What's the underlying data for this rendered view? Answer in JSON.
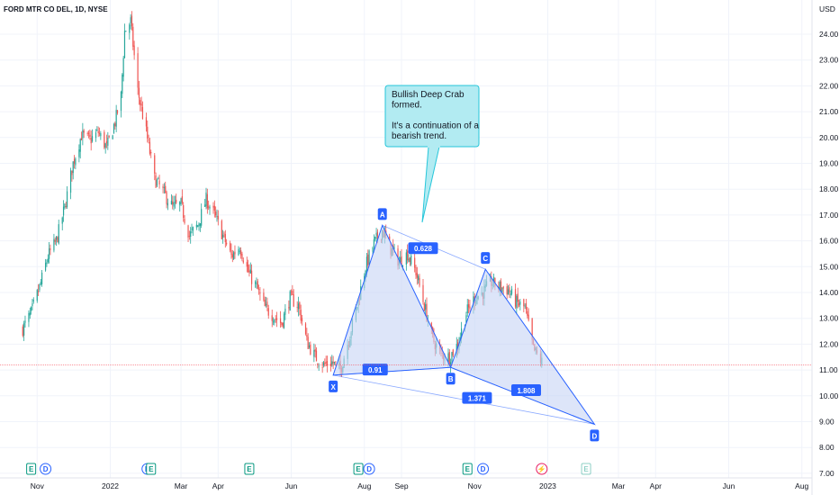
{
  "header": {
    "symbol": "FORD MTR CO DEL, 1D, NYSE"
  },
  "currency": "USD",
  "current_price": "11.20",
  "callout": {
    "lines": [
      "Bullish Deep Crab",
      "formed.",
      "",
      "It's a continuation of a",
      "bearish trend."
    ]
  },
  "chart_data": {
    "type": "candlestick",
    "x_labels": [
      "Nov",
      "2022",
      "Mar",
      "Apr",
      "Jun",
      "Aug",
      "Sep",
      "Nov",
      "2023",
      "Mar",
      "Apr",
      "Jun",
      "Aug"
    ],
    "y_ticks": [
      "24.00",
      "23.00",
      "22.00",
      "21.00",
      "20.00",
      "19.00",
      "18.00",
      "17.00",
      "16.00",
      "15.00",
      "14.00",
      "13.00",
      "12.00",
      "11.00",
      "10.00",
      "9.00",
      "8.00",
      "7.00"
    ],
    "ylim": [
      6.7,
      25.2
    ],
    "price_path": [
      [
        "2021-10-20",
        12.6
      ],
      [
        "2021-10-27",
        13.2
      ],
      [
        "2021-11-03",
        14.2
      ],
      [
        "2021-11-10",
        15.4
      ],
      [
        "2021-11-17",
        16.0
      ],
      [
        "2021-11-24",
        17.3
      ],
      [
        "2021-12-01",
        19.0
      ],
      [
        "2021-12-08",
        20.1
      ],
      [
        "2021-12-15",
        19.9
      ],
      [
        "2021-12-22",
        20.2
      ],
      [
        "2021-12-29",
        19.6
      ],
      [
        "2022-01-05",
        20.6
      ],
      [
        "2022-01-10",
        21.6
      ],
      [
        "2022-01-13",
        24.1
      ],
      [
        "2022-01-18",
        24.5
      ],
      [
        "2022-01-24",
        21.8
      ],
      [
        "2022-01-31",
        20.2
      ],
      [
        "2022-02-07",
        18.4
      ],
      [
        "2022-02-14",
        17.9
      ],
      [
        "2022-02-22",
        17.3
      ],
      [
        "2022-03-01",
        17.4
      ],
      [
        "2022-03-08",
        16.2
      ],
      [
        "2022-03-15",
        16.6
      ],
      [
        "2022-03-22",
        17.6
      ],
      [
        "2022-03-29",
        17.0
      ],
      [
        "2022-04-05",
        16.2
      ],
      [
        "2022-04-12",
        15.4
      ],
      [
        "2022-04-19",
        15.8
      ],
      [
        "2022-04-26",
        14.8
      ],
      [
        "2022-05-03",
        14.2
      ],
      [
        "2022-05-10",
        13.4
      ],
      [
        "2022-05-17",
        13.1
      ],
      [
        "2022-05-24",
        12.8
      ],
      [
        "2022-05-31",
        13.8
      ],
      [
        "2022-06-07",
        13.5
      ],
      [
        "2022-06-14",
        12.1
      ],
      [
        "2022-06-21",
        11.5
      ],
      [
        "2022-06-28",
        11.2
      ],
      [
        "2022-07-05",
        11.3
      ],
      [
        "2022-07-12",
        11.0
      ],
      [
        "2022-07-19",
        12.2
      ],
      [
        "2022-07-26",
        13.5
      ],
      [
        "2022-08-02",
        15.0
      ],
      [
        "2022-08-09",
        15.9
      ],
      [
        "2022-08-16",
        16.4
      ],
      [
        "2022-08-23",
        15.7
      ],
      [
        "2022-08-30",
        15.2
      ],
      [
        "2022-09-06",
        15.5
      ],
      [
        "2022-09-13",
        14.8
      ],
      [
        "2022-09-20",
        13.5
      ],
      [
        "2022-09-27",
        12.2
      ],
      [
        "2022-10-04",
        11.6
      ],
      [
        "2022-10-11",
        11.5
      ],
      [
        "2022-10-18",
        12.0
      ],
      [
        "2022-10-25",
        13.2
      ],
      [
        "2022-11-01",
        13.8
      ],
      [
        "2022-11-08",
        14.0
      ],
      [
        "2022-11-15",
        14.4
      ],
      [
        "2022-11-22",
        14.2
      ],
      [
        "2022-11-29",
        14.1
      ],
      [
        "2022-12-06",
        13.6
      ],
      [
        "2022-12-13",
        13.4
      ],
      [
        "2022-12-20",
        11.8
      ],
      [
        "2022-12-27",
        11.3
      ]
    ],
    "pattern": {
      "points": [
        {
          "label": "X",
          "date": "2022-07-06",
          "price": 10.8
        },
        {
          "label": "A",
          "date": "2022-08-16",
          "price": 16.6
        },
        {
          "label": "B",
          "date": "2022-10-12",
          "price": 11.1
        },
        {
          "label": "C",
          "date": "2022-11-10",
          "price": 14.9
        },
        {
          "label": "D",
          "date": "2023-02-09",
          "price": 8.9
        }
      ],
      "ratios": [
        {
          "text": "0.628",
          "date": "2022-09-19",
          "price": 15.7
        },
        {
          "text": "0.91",
          "date": "2022-08-10",
          "price": 11.0
        },
        {
          "text": "1.371",
          "date": "2022-11-03",
          "price": 9.9
        },
        {
          "text": "1.808",
          "date": "2022-12-14",
          "price": 10.2
        }
      ]
    },
    "events": [
      {
        "type": "E",
        "date": "2021-10-27"
      },
      {
        "type": "D",
        "date": "2021-11-08"
      },
      {
        "type": "D",
        "date": "2022-02-01"
      },
      {
        "type": "E",
        "date": "2022-02-04"
      },
      {
        "type": "E",
        "date": "2022-04-27"
      },
      {
        "type": "E",
        "date": "2022-07-27"
      },
      {
        "type": "D",
        "date": "2022-08-05"
      },
      {
        "type": "E",
        "date": "2022-10-26"
      },
      {
        "type": "D",
        "date": "2022-11-08"
      },
      {
        "type": "S",
        "date": "2022-12-27"
      },
      {
        "type": "E",
        "date": "2023-02-02"
      }
    ],
    "colors": {
      "up": "#26a69a",
      "down": "#ef5350",
      "pattern": "#2962ff",
      "pattern_fill": "#c6d4f5",
      "callout_bg": "#b2ebf2",
      "callout_border": "#26c6da",
      "price_line": "#f7525f",
      "grid": "#f0f3fa"
    }
  }
}
